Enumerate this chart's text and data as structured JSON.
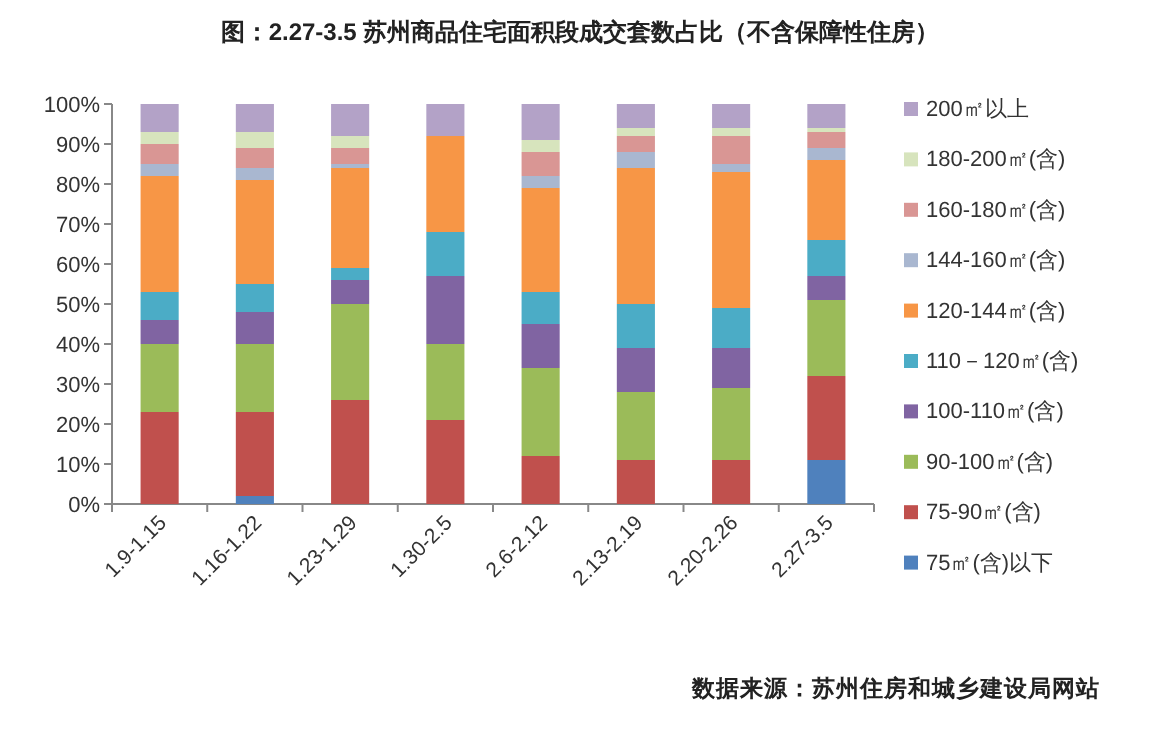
{
  "chart_data": {
    "type": "bar",
    "stacked": true,
    "title": "图：2.27-3.5 苏州商品住宅面积段成交套数占比（不含保障性住房）",
    "categories": [
      "1.9-1.15",
      "1.16-1.22",
      "1.23-1.29",
      "1.30-2.5",
      "2.6-2.12",
      "2.13-2.19",
      "2.20-2.26",
      "2.27-3.5"
    ],
    "series": [
      {
        "name": "75㎡(含)以下",
        "color": "#4f81bd",
        "values": [
          0,
          2,
          0,
          0,
          0,
          0,
          0,
          11
        ]
      },
      {
        "name": "75-90㎡(含)",
        "color": "#c0504d",
        "values": [
          23,
          21,
          26,
          21,
          12,
          11,
          11,
          21
        ]
      },
      {
        "name": "90-100㎡(含)",
        "color": "#9bbb59",
        "values": [
          17,
          17,
          24,
          19,
          22,
          17,
          18,
          19
        ]
      },
      {
        "name": "100-110㎡(含)",
        "color": "#8064a2",
        "values": [
          6,
          8,
          6,
          17,
          11,
          11,
          10,
          6
        ]
      },
      {
        "name": "110－120㎡(含)",
        "color": "#4bacc6",
        "values": [
          7,
          7,
          3,
          11,
          8,
          11,
          10,
          9
        ]
      },
      {
        "name": "120-144㎡(含)",
        "color": "#f79646",
        "values": [
          29,
          26,
          25,
          24,
          26,
          34,
          34,
          20
        ]
      },
      {
        "name": "144-160㎡(含)",
        "color": "#a9b7d0",
        "values": [
          3,
          3,
          1,
          0,
          3,
          4,
          2,
          3
        ]
      },
      {
        "name": "160-180㎡(含)",
        "color": "#d99694",
        "values": [
          5,
          5,
          4,
          0,
          6,
          4,
          7,
          4
        ]
      },
      {
        "name": "180-200㎡(含)",
        "color": "#d7e4bd",
        "values": [
          3,
          4,
          3,
          0,
          3,
          2,
          2,
          1
        ]
      },
      {
        "name": "200㎡以上",
        "color": "#b3a2c7",
        "values": [
          7,
          7,
          8,
          8,
          9,
          6,
          6,
          6
        ]
      }
    ],
    "ylim": [
      0,
      100
    ],
    "yticks": [
      {
        "value": 0,
        "label": "0%"
      },
      {
        "value": 10,
        "label": "10%"
      },
      {
        "value": 20,
        "label": "20%"
      },
      {
        "value": 30,
        "label": "30%"
      },
      {
        "value": 40,
        "label": "40%"
      },
      {
        "value": 50,
        "label": "50%"
      },
      {
        "value": 60,
        "label": "60%"
      },
      {
        "value": 70,
        "label": "70%"
      },
      {
        "value": 80,
        "label": "80%"
      },
      {
        "value": 90,
        "label": "90%"
      },
      {
        "value": 100,
        "label": "100%"
      }
    ],
    "grid": false,
    "legend": "right",
    "annotations": [
      "数据来源：苏州住房和城乡建设局网站"
    ]
  }
}
